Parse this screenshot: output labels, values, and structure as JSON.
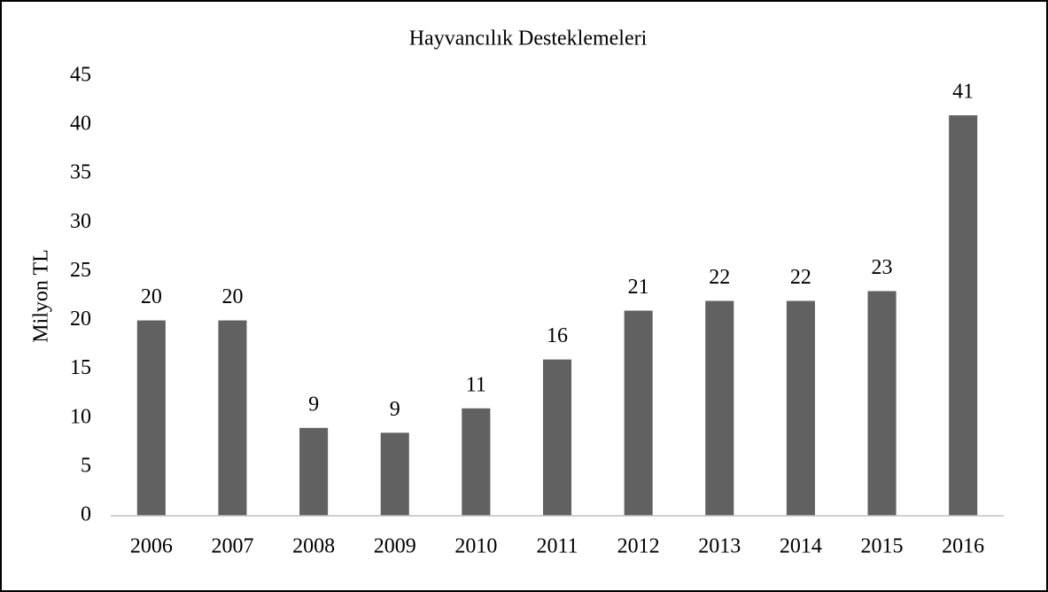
{
  "chart_data": {
    "type": "bar",
    "title": "Hayvancılık Desteklemeleri",
    "y_label": "Milyon TL",
    "categories": [
      "2006",
      "2007",
      "2008",
      "2009",
      "2010",
      "2011",
      "2012",
      "2013",
      "2014",
      "2015",
      "2016"
    ],
    "values": [
      20,
      20,
      9,
      8.5,
      11,
      16,
      21,
      22,
      22,
      23,
      41
    ],
    "value_labels": [
      "20",
      "20",
      "9",
      "9",
      "11",
      "16",
      "21",
      "22",
      "22",
      "23",
      "41"
    ],
    "color": "#616161",
    "ylim": [
      0,
      45
    ],
    "yticks": [
      0,
      5,
      10,
      15,
      20,
      25,
      30,
      35,
      40,
      45
    ],
    "grid": false
  }
}
